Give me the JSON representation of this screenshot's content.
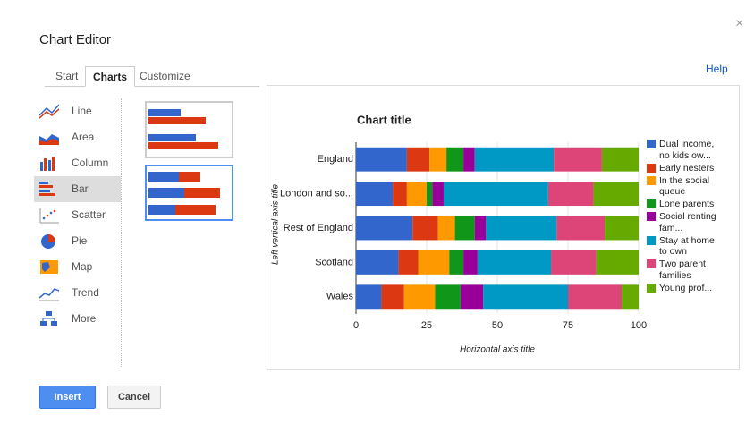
{
  "dialog": {
    "title": "Chart Editor",
    "close": "×",
    "help": "Help",
    "tabs": [
      "Start",
      "Charts",
      "Customize"
    ],
    "chart_types": [
      "Line",
      "Area",
      "Column",
      "Bar",
      "Scatter",
      "Pie",
      "Map",
      "Trend",
      "More"
    ],
    "buttons": [
      "Insert",
      "Cancel"
    ]
  },
  "chart_data": {
    "type": "bar",
    "orientation": "horizontal",
    "stacked": true,
    "title": "Chart title",
    "x_label": "Horizontal axis title",
    "y_label": "Left vertical axis title",
    "categories": [
      "England",
      "London and so...",
      "Rest of England",
      "Scotland",
      "Wales"
    ],
    "series": [
      {
        "name": "Dual income, no kids ow...",
        "color": "#3366cc",
        "values": [
          18,
          13,
          20,
          15,
          9
        ]
      },
      {
        "name": "Early nesters",
        "color": "#dc3912",
        "values": [
          8,
          5,
          9,
          7,
          8
        ]
      },
      {
        "name": "In the social queue",
        "color": "#ff9900",
        "values": [
          6,
          7,
          6,
          11,
          11
        ]
      },
      {
        "name": "Lone parents",
        "color": "#109618",
        "values": [
          6,
          2,
          7,
          5,
          9
        ]
      },
      {
        "name": "Social renting fam...",
        "color": "#990099",
        "values": [
          4,
          4,
          4,
          5,
          8
        ]
      },
      {
        "name": "Stay at home to own",
        "color": "#0099c6",
        "values": [
          28,
          37,
          25,
          26,
          30
        ]
      },
      {
        "name": "Two parent families",
        "color": "#dd4477",
        "values": [
          17,
          16,
          17,
          16,
          19
        ]
      },
      {
        "name": "Young prof...",
        "color": "#66aa00",
        "values": [
          13,
          16,
          12,
          15,
          6
        ]
      }
    ],
    "xlim": [
      0,
      100
    ],
    "xticks": [
      0,
      25,
      50,
      75,
      100
    ],
    "grid": true,
    "legend": "right"
  }
}
